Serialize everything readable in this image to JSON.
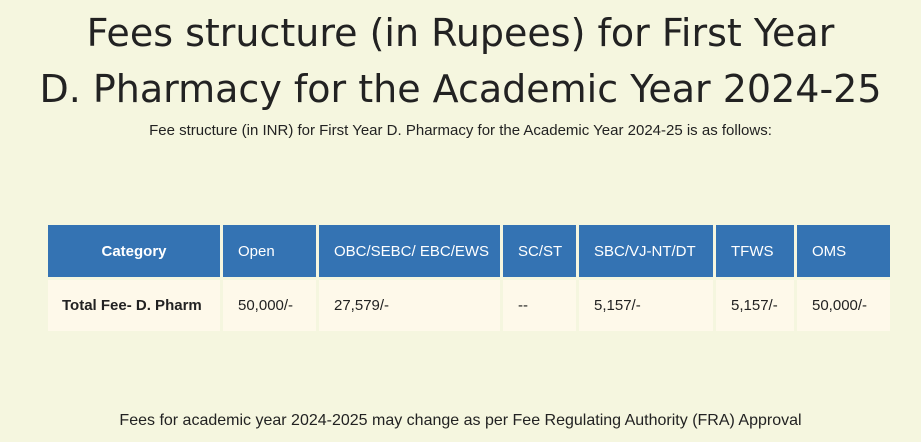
{
  "heading": {
    "line1": "Fees structure (in Rupees) for First Year",
    "line2": "D. Pharmacy for the Academic Year 2024-25"
  },
  "intro_text": "Fee structure (in INR) for First Year D. Pharmacy for the Academic Year 2024-25 is as follows:",
  "fee_table": {
    "headers": [
      "Category",
      "Open",
      "OBC/SEBC/ EBC/EWS",
      "SC/ST",
      "SBC/VJ-NT/DT",
      "TFWS",
      "OMS"
    ],
    "rows": [
      {
        "label": "Total Fee- D. Pharm",
        "values": [
          "50,000/-",
          "27,579/-",
          "--",
          "5,157/-",
          "5,157/-",
          "50,000/-"
        ]
      }
    ]
  },
  "footer_note": "Fees for academic year 2024-2025 may change as per Fee Regulating Authority (FRA) Approval",
  "colors": {
    "page_background": "#f5f6df",
    "header_background": "#3473b3",
    "cell_background": "#fef9ea",
    "text": "#222222"
  }
}
